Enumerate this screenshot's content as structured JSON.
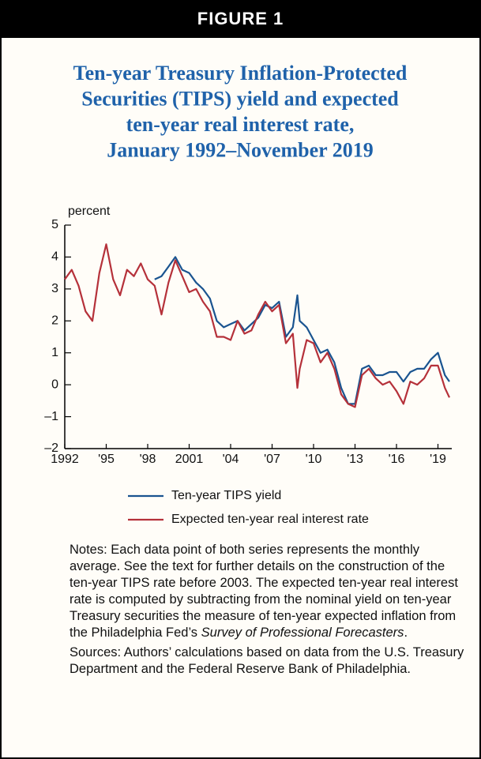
{
  "header": "FIGURE 1",
  "chart_data": {
    "type": "line",
    "title": [
      "Ten-year Treasury Inflation-Protected",
      "Securities (TIPS) yield and expected",
      "ten-year real interest rate,",
      "January 1992–November 2019"
    ],
    "ylabel": "percent",
    "x": [
      1992.0,
      1992.5,
      1993.0,
      1993.5,
      1994.0,
      1994.5,
      1995.0,
      1995.5,
      1996.0,
      1996.5,
      1997.0,
      1997.5,
      1998.0,
      1998.5,
      1999.0,
      1999.5,
      2000.0,
      2000.5,
      2001.0,
      2001.5,
      2002.0,
      2002.5,
      2003.0,
      2003.5,
      2004.0,
      2004.5,
      2005.0,
      2005.5,
      2006.0,
      2006.5,
      2007.0,
      2007.5,
      2008.0,
      2008.5,
      2008.83,
      2009.0,
      2009.5,
      2010.0,
      2010.5,
      2011.0,
      2011.5,
      2012.0,
      2012.5,
      2013.0,
      2013.5,
      2014.0,
      2014.5,
      2015.0,
      2015.5,
      2016.0,
      2016.5,
      2017.0,
      2017.5,
      2018.0,
      2018.5,
      2019.0,
      2019.5,
      2019.83
    ],
    "series": [
      {
        "name": "Ten-year TIPS yield",
        "color": "#1a5490",
        "values": [
          null,
          null,
          null,
          null,
          null,
          null,
          null,
          null,
          null,
          null,
          null,
          null,
          null,
          3.3,
          3.4,
          3.7,
          4.0,
          3.6,
          3.5,
          3.2,
          3.0,
          2.7,
          2.0,
          1.8,
          1.9,
          2.0,
          1.7,
          1.9,
          2.1,
          2.5,
          2.4,
          2.6,
          1.5,
          1.8,
          2.8,
          2.0,
          1.8,
          1.4,
          1.0,
          1.1,
          0.7,
          -0.1,
          -0.6,
          -0.6,
          0.5,
          0.6,
          0.3,
          0.3,
          0.4,
          0.4,
          0.1,
          0.4,
          0.5,
          0.5,
          0.8,
          1.0,
          0.3,
          0.1
        ]
      },
      {
        "name": "Expected ten-year real interest rate",
        "color": "#b5313a",
        "values": [
          3.3,
          3.6,
          3.1,
          2.3,
          2.0,
          3.5,
          4.4,
          3.3,
          2.8,
          3.6,
          3.4,
          3.8,
          3.3,
          3.1,
          2.2,
          3.2,
          3.9,
          3.4,
          2.9,
          3.0,
          2.6,
          2.3,
          1.5,
          1.5,
          1.4,
          2.0,
          1.6,
          1.7,
          2.2,
          2.6,
          2.3,
          2.5,
          1.3,
          1.6,
          -0.1,
          0.5,
          1.4,
          1.3,
          0.7,
          1.0,
          0.5,
          -0.3,
          -0.6,
          -0.7,
          0.3,
          0.5,
          0.2,
          0.0,
          0.1,
          -0.2,
          -0.6,
          0.1,
          0.0,
          0.2,
          0.6,
          0.6,
          -0.1,
          -0.4
        ]
      }
    ],
    "xlim": [
      1992,
      2020
    ],
    "xticks": [
      1992,
      {
        "value": 1995,
        "label": "'95"
      },
      {
        "value": 1998,
        "label": "'98"
      },
      2001,
      {
        "value": 2004,
        "label": "'04"
      },
      {
        "value": 2007,
        "label": "'07"
      },
      {
        "value": 2010,
        "label": "'10"
      },
      {
        "value": 2013,
        "label": "'13"
      },
      {
        "value": 2016,
        "label": "'16"
      },
      {
        "value": 2019,
        "label": "'19"
      }
    ],
    "ylim": [
      -2,
      5
    ],
    "yticks": [
      {
        "value": -2,
        "label": "–2"
      },
      {
        "value": -1,
        "label": "–1"
      },
      0,
      1,
      2,
      3,
      4,
      5
    ]
  },
  "notes": [
    "Notes: Each data point of both series represents the monthly average. See the text for further details on the construction of the ten-year TIPS rate before 2003. The expected ten-year real interest rate is computed by subtracting from the nominal yield on ten-year Treasury securities the measure of ten-year expected inflation from the Philadelphia Fed’s ",
    "Survey of Professional Forecasters",
    "."
  ],
  "sources": "Sources: Authors’ calculations based on data from the U.S. Treasury Department and the Federal Reserve Bank of Philadelphia."
}
